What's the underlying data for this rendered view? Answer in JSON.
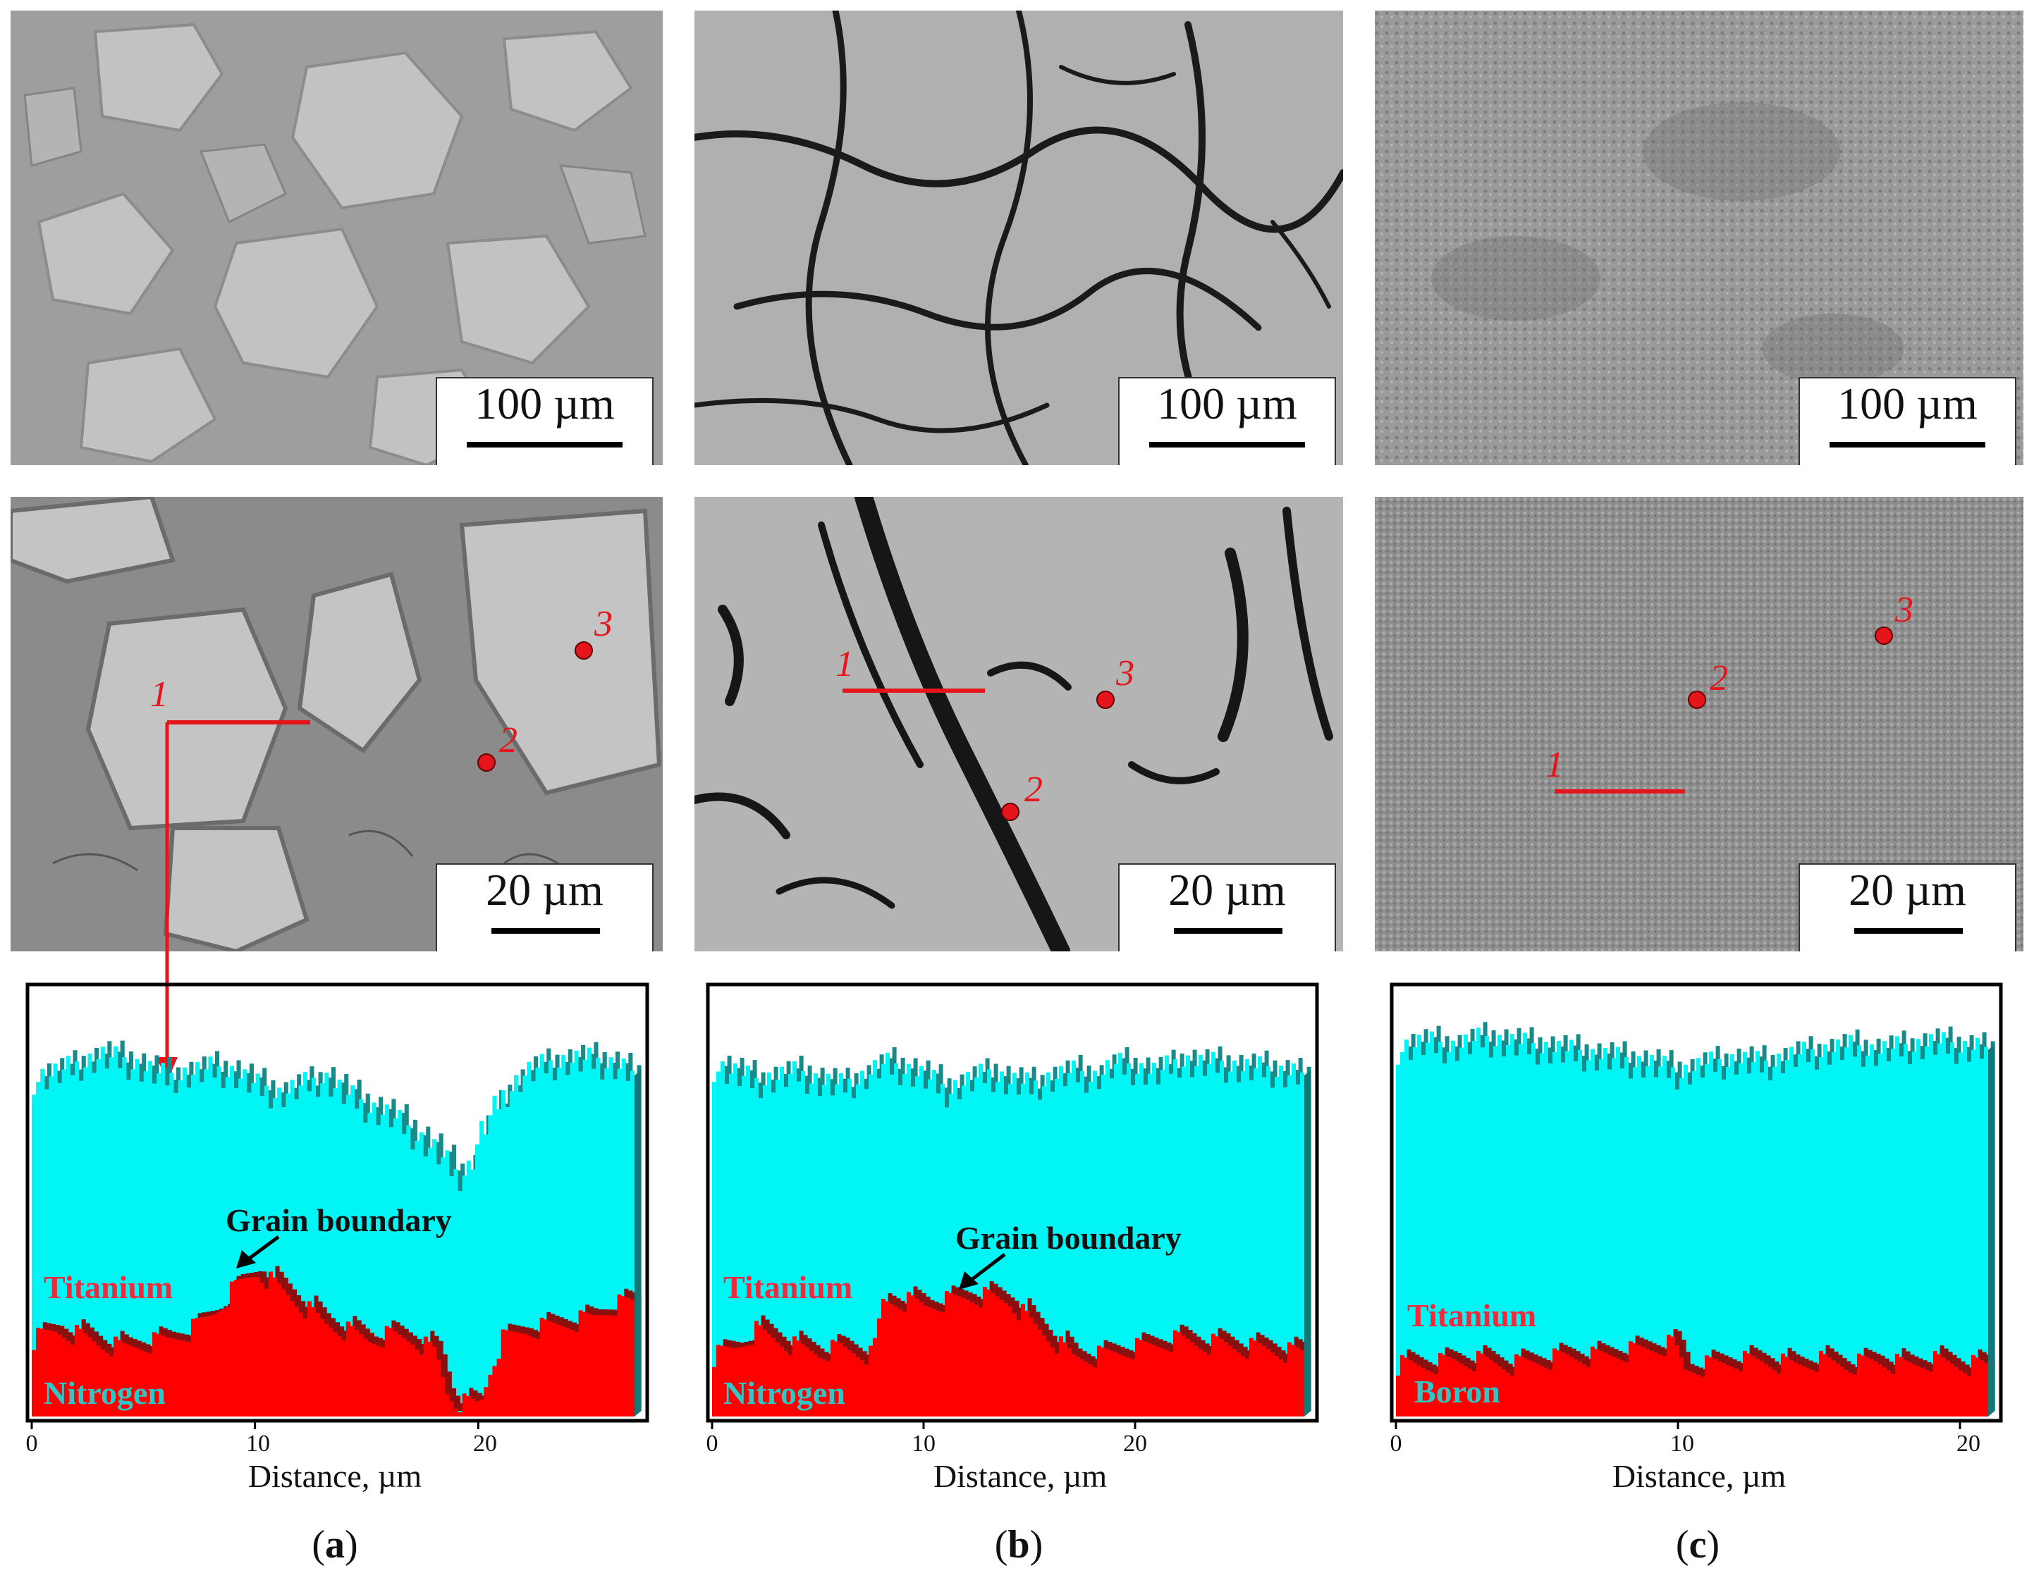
{
  "figure": {
    "panels": [
      {
        "id": "a",
        "label": "a",
        "micrograph_low": {
          "scale_label": "100 µm"
        },
        "micrograph_high": {
          "scale_label": "20 µm",
          "markers": [
            {
              "label": "1",
              "kind": "line"
            },
            {
              "label": "2",
              "kind": "point"
            },
            {
              "label": "3",
              "kind": "point"
            }
          ]
        },
        "linescan": {
          "xlabel": "Distance, µm",
          "xticks": [
            "0",
            "10",
            "20"
          ],
          "xmax": 27,
          "elements": [
            {
              "name": "Titanium",
              "color": "#ee2a3c"
            },
            {
              "name": "Nitrogen",
              "color": "#2ec7c8"
            }
          ],
          "annotation": "Grain boundary",
          "ti_profile": [
            [
              0,
              79
            ],
            [
              1,
              80
            ],
            [
              2,
              82
            ],
            [
              3,
              84
            ],
            [
              4,
              83
            ],
            [
              5,
              81
            ],
            [
              6,
              79
            ],
            [
              7,
              80
            ],
            [
              8,
              81
            ],
            [
              9,
              80
            ],
            [
              10,
              77
            ],
            [
              11,
              75
            ],
            [
              12,
              77
            ],
            [
              13,
              79
            ],
            [
              14,
              75
            ],
            [
              15,
              72
            ],
            [
              16,
              70
            ],
            [
              17,
              66
            ],
            [
              18,
              62
            ],
            [
              19,
              56
            ],
            [
              19.5,
              58
            ],
            [
              20,
              66
            ],
            [
              21,
              75
            ],
            [
              22,
              80
            ],
            [
              23,
              82
            ],
            [
              24,
              83
            ],
            [
              25,
              83
            ],
            [
              26,
              82
            ],
            [
              27,
              80
            ]
          ],
          "n_profile": [
            [
              0,
              18
            ],
            [
              1,
              20
            ],
            [
              2,
              19
            ],
            [
              3,
              17
            ],
            [
              4,
              16
            ],
            [
              5,
              17
            ],
            [
              6,
              18
            ],
            [
              7,
              20
            ],
            [
              8,
              24
            ],
            [
              9,
              30
            ],
            [
              10,
              34
            ],
            [
              11,
              30
            ],
            [
              12,
              26
            ],
            [
              13,
              22
            ],
            [
              14,
              20
            ],
            [
              15,
              18
            ],
            [
              16,
              19
            ],
            [
              17,
              18
            ],
            [
              18,
              15
            ],
            [
              18.5,
              6
            ],
            [
              19,
              3
            ],
            [
              20,
              3
            ],
            [
              20.5,
              12
            ],
            [
              21,
              18
            ],
            [
              22,
              20
            ],
            [
              23,
              21
            ],
            [
              24,
              22
            ],
            [
              25,
              23
            ],
            [
              26,
              26
            ],
            [
              27,
              27
            ]
          ]
        }
      },
      {
        "id": "b",
        "label": "b",
        "micrograph_low": {
          "scale_label": "100 µm"
        },
        "micrograph_high": {
          "scale_label": "20 µm",
          "markers": [
            {
              "label": "1",
              "kind": "line"
            },
            {
              "label": "2",
              "kind": "point"
            },
            {
              "label": "3",
              "kind": "point"
            }
          ]
        },
        "linescan": {
          "xlabel": "Distance, µm",
          "xticks": [
            "0",
            "10",
            "20"
          ],
          "xmax": 28,
          "elements": [
            {
              "name": "Titanium",
              "color": "#ee2a3c"
            },
            {
              "name": "Nitrogen",
              "color": "#2ec7c8"
            }
          ],
          "annotation": "Grain boundary",
          "ti_profile": [
            [
              0,
              82
            ],
            [
              1,
              80
            ],
            [
              2,
              78
            ],
            [
              3,
              79
            ],
            [
              4,
              80
            ],
            [
              5,
              78
            ],
            [
              6,
              77
            ],
            [
              7,
              79
            ],
            [
              8,
              82
            ],
            [
              9,
              81
            ],
            [
              10,
              79
            ],
            [
              11,
              76
            ],
            [
              12,
              78
            ],
            [
              13,
              80
            ],
            [
              14,
              78
            ],
            [
              15,
              77
            ],
            [
              16,
              79
            ],
            [
              17,
              80
            ],
            [
              18,
              79
            ],
            [
              19,
              82
            ],
            [
              20,
              81
            ],
            [
              21,
              80
            ],
            [
              22,
              83
            ],
            [
              23,
              82
            ],
            [
              24,
              82
            ],
            [
              25,
              81
            ],
            [
              26,
              81
            ],
            [
              27,
              80
            ],
            [
              28,
              80
            ]
          ],
          "n_profile": [
            [
              0,
              14
            ],
            [
              1,
              16
            ],
            [
              2,
              20
            ],
            [
              3,
              18
            ],
            [
              4,
              16
            ],
            [
              5,
              15
            ],
            [
              6,
              16
            ],
            [
              7,
              15
            ],
            [
              7.5,
              14
            ],
            [
              8,
              27
            ],
            [
              9,
              27
            ],
            [
              10,
              26
            ],
            [
              11,
              27
            ],
            [
              12,
              28
            ],
            [
              13,
              28
            ],
            [
              14,
              27
            ],
            [
              15,
              22
            ],
            [
              16,
              18
            ],
            [
              17,
              14
            ],
            [
              18,
              14
            ],
            [
              19,
              15
            ],
            [
              20,
              16
            ],
            [
              21,
              17
            ],
            [
              22,
              18
            ],
            [
              23,
              17
            ],
            [
              24,
              17
            ],
            [
              25,
              16
            ],
            [
              26,
              16
            ],
            [
              27,
              15
            ],
            [
              28,
              15
            ]
          ]
        }
      },
      {
        "id": "c",
        "label": "c",
        "micrograph_low": {
          "scale_label": "100 µm"
        },
        "micrograph_high": {
          "scale_label": "20 µm",
          "markers": [
            {
              "label": "1",
              "kind": "line"
            },
            {
              "label": "2",
              "kind": "point"
            },
            {
              "label": "3",
              "kind": "point"
            }
          ]
        },
        "linescan": {
          "xlabel": "Distance, µm",
          "xticks": [
            "0",
            "10",
            "20"
          ],
          "xmax": 21,
          "elements": [
            {
              "name": "Titanium",
              "color": "#ee2a3c"
            },
            {
              "name": "Boron",
              "color": "#2ec7c8"
            }
          ],
          "annotation": "",
          "ti_profile": [
            [
              0,
              86
            ],
            [
              1,
              87
            ],
            [
              2,
              86
            ],
            [
              3,
              88
            ],
            [
              4,
              87
            ],
            [
              5,
              86
            ],
            [
              6,
              85
            ],
            [
              7,
              84
            ],
            [
              8,
              83
            ],
            [
              9,
              82
            ],
            [
              10,
              80
            ],
            [
              11,
              82
            ],
            [
              12,
              83
            ],
            [
              13,
              82
            ],
            [
              14,
              84
            ],
            [
              15,
              85
            ],
            [
              16,
              86
            ],
            [
              17,
              85
            ],
            [
              18,
              86
            ],
            [
              19,
              87
            ],
            [
              20,
              86
            ],
            [
              21,
              86
            ]
          ],
          "n_profile": [
            [
              0,
              12
            ],
            [
              1,
              12
            ],
            [
              2,
              13
            ],
            [
              3,
              13
            ],
            [
              4,
              12
            ],
            [
              5,
              13
            ],
            [
              6,
              14
            ],
            [
              7,
              14
            ],
            [
              8,
              15
            ],
            [
              9,
              16
            ],
            [
              9.8,
              17
            ],
            [
              10.2,
              11
            ],
            [
              11,
              12
            ],
            [
              12,
              13
            ],
            [
              13,
              13
            ],
            [
              14,
              12
            ],
            [
              15,
              13
            ],
            [
              16,
              12
            ],
            [
              17,
              13
            ],
            [
              18,
              12
            ],
            [
              19,
              13
            ],
            [
              20,
              12
            ],
            [
              21,
              12
            ]
          ]
        }
      }
    ]
  }
}
